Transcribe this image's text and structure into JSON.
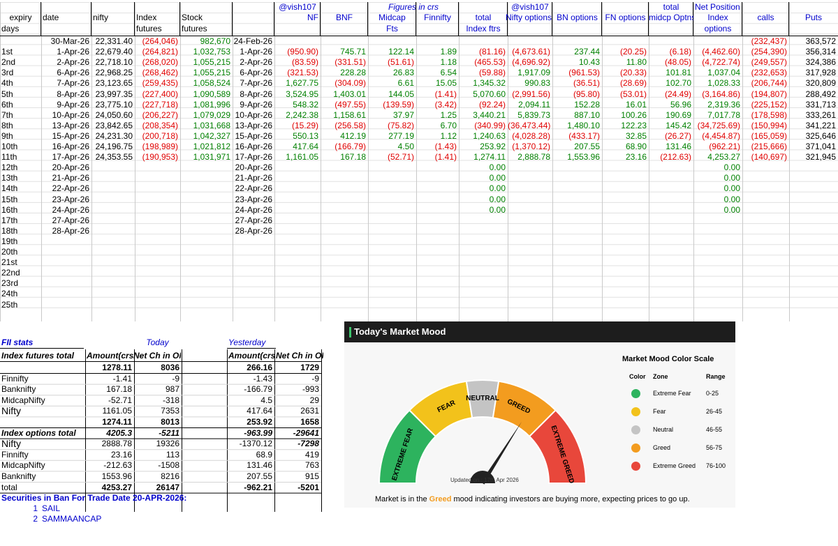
{
  "header_row1": {
    "vish1": "@vish107",
    "figures": "Figures in crs",
    "vish2": "@vish107",
    "total": "total",
    "net_position": "Net Position"
  },
  "header_row2": {
    "expiry": "expiry",
    "date": "date",
    "nifty": "nifty",
    "index": "Index",
    "stock": "Stock",
    "nf": "NF",
    "bnf": "BNF",
    "midcap": "Midcap",
    "finnifty": "Finnifty",
    "total": "total",
    "nifty_options": "Nifty options",
    "bn_options": "BN options",
    "fn_options": "FN options",
    "midcp_optns": "midcp Optns",
    "index2": "Index",
    "calls": "calls",
    "puts": "Puts"
  },
  "header_row3": {
    "days": "days",
    "futures1": "futures",
    "futures2": "futures",
    "fts": "Fts",
    "index_ftrs": "Index ftrs",
    "options": "options"
  },
  "first_row": {
    "date": "30-Mar-26",
    "nifty": "22,331.40",
    "index_fut": "(264,046)",
    "stock_fut": "982,670",
    "date2": "24-Feb-26",
    "calls": "(232,437)",
    "puts": "363,572"
  },
  "rows": [
    {
      "day": "1st",
      "date": "1-Apr-26",
      "nifty": "22,679.40",
      "idx": "(264,821)",
      "stk": "1,032,753",
      "d2": "1-Apr-26",
      "nf": "(950.90)",
      "bnf": "745.71",
      "mid": "122.14",
      "fin": "1.89",
      "tot": "(81.16)",
      "nopt": "(4,673.61)",
      "bnopt": "237.44",
      "fnopt": "(20.25)",
      "mcopt": "(6.18)",
      "iopt": "(4,462.60)",
      "calls": "(254,390)",
      "puts": "356,314"
    },
    {
      "day": "2nd",
      "date": "2-Apr-26",
      "nifty": "22,718.10",
      "idx": "(268,020)",
      "stk": "1,055,215",
      "d2": "2-Apr-26",
      "nf": "(83.59)",
      "bnf": "(331.51)",
      "mid": "(51.61)",
      "fin": "1.18",
      "tot": "(465.53)",
      "nopt": "(4,696.92)",
      "bnopt": "10.43",
      "fnopt": "11.80",
      "mcopt": "(48.05)",
      "iopt": "(4,722.74)",
      "calls": "(249,557)",
      "puts": "324,386"
    },
    {
      "day": "3rd",
      "date": "6-Apr-26",
      "nifty": "22,968.25",
      "idx": "(268,462)",
      "stk": "1,055,215",
      "d2": "6-Apr-26",
      "nf": "(321.53)",
      "bnf": "228.28",
      "mid": "26.83",
      "fin": "6.54",
      "tot": "(59.88)",
      "nopt": "1,917.09",
      "bnopt": "(961.53)",
      "fnopt": "(20.33)",
      "mcopt": "101.81",
      "iopt": "1,037.04",
      "calls": "(232,653)",
      "puts": "317,928"
    },
    {
      "day": "4th",
      "date": "7-Apr-26",
      "nifty": "23,123.65",
      "idx": "(259,435)",
      "stk": "1,058,524",
      "d2": "7-Apr-26",
      "nf": "1,627.75",
      "bnf": "(304.09)",
      "mid": "6.61",
      "fin": "15.05",
      "tot": "1,345.32",
      "nopt": "990.83",
      "bnopt": "(36.51)",
      "fnopt": "(28.69)",
      "mcopt": "102.70",
      "iopt": "1,028.33",
      "calls": "(206,744)",
      "puts": "320,809"
    },
    {
      "day": "5th",
      "date": "8-Apr-26",
      "nifty": "23,997.35",
      "idx": "(227,400)",
      "stk": "1,090,589",
      "d2": "8-Apr-26",
      "nf": "3,524.95",
      "bnf": "1,403.01",
      "mid": "144.05",
      "fin": "(1.41)",
      "tot": "5,070.60",
      "nopt": "(2,991.56)",
      "bnopt": "(95.80)",
      "fnopt": "(53.01)",
      "mcopt": "(24.49)",
      "iopt": "(3,164.86)",
      "calls": "(194,807)",
      "puts": "288,492"
    },
    {
      "day": "6th",
      "date": "9-Apr-26",
      "nifty": "23,775.10",
      "idx": "(227,718)",
      "stk": "1,081,996",
      "d2": "9-Apr-26",
      "nf": "548.32",
      "bnf": "(497.55)",
      "mid": "(139.59)",
      "fin": "(3.42)",
      "tot": "(92.24)",
      "nopt": "2,094.11",
      "bnopt": "152.28",
      "fnopt": "16.01",
      "mcopt": "56.96",
      "iopt": "2,319.36",
      "calls": "(225,152)",
      "puts": "331,713"
    },
    {
      "day": "7th",
      "date": "10-Apr-26",
      "nifty": "24,050.60",
      "idx": "(206,227)",
      "stk": "1,079,029",
      "d2": "10-Apr-26",
      "nf": "2,242.38",
      "bnf": "1,158.61",
      "mid": "37.97",
      "fin": "1.25",
      "tot": "3,440.21",
      "nopt": "5,839.73",
      "bnopt": "887.10",
      "fnopt": "100.26",
      "mcopt": "190.69",
      "iopt": "7,017.78",
      "calls": "(178,598)",
      "puts": "333,261"
    },
    {
      "day": "8th",
      "date": "13-Apr-26",
      "nifty": "23,842.65",
      "idx": "(208,354)",
      "stk": "1,031,668",
      "d2": "13-Apr-26",
      "nf": "(15.29)",
      "bnf": "(256.58)",
      "mid": "(75.82)",
      "fin": "6.70",
      "tot": "(340.99)",
      "nopt": "(36,473.44)",
      "bnopt": "1,480.10",
      "fnopt": "122.23",
      "mcopt": "145.42",
      "iopt": "(34,725.69)",
      "calls": "(150,994)",
      "puts": "341,221"
    },
    {
      "day": "9th",
      "date": "15-Apr-26",
      "nifty": "24,231.30",
      "idx": "(200,718)",
      "stk": "1,042,327",
      "d2": "15-Apr-26",
      "nf": "550.13",
      "bnf": "412.19",
      "mid": "277.19",
      "fin": "1.12",
      "tot": "1,240.63",
      "nopt": "(4,028.28)",
      "bnopt": "(433.17)",
      "fnopt": "32.85",
      "mcopt": "(26.27)",
      "iopt": "(4,454.87)",
      "calls": "(165,059)",
      "puts": "325,646"
    },
    {
      "day": "10th",
      "date": "16-Apr-26",
      "nifty": "24,196.75",
      "idx": "(198,989)",
      "stk": "1,021,812",
      "d2": "16-Apr-26",
      "nf": "417.64",
      "bnf": "(166.79)",
      "mid": "4.50",
      "fin": "(1.43)",
      "tot": "253.92",
      "nopt": "(1,370.12)",
      "bnopt": "207.55",
      "fnopt": "68.90",
      "mcopt": "131.46",
      "iopt": "(962.21)",
      "calls": "(215,666)",
      "puts": "371,041"
    },
    {
      "day": "11th",
      "date": "17-Apr-26",
      "nifty": "24,353.55",
      "idx": "(190,953)",
      "stk": "1,031,971",
      "d2": "17-Apr-26",
      "nf": "1,161.05",
      "bnf": "167.18",
      "mid": "(52.71)",
      "fin": "(1.41)",
      "tot": "1,274.11",
      "nopt": "2,888.78",
      "bnopt": "1,553.96",
      "fnopt": "23.16",
      "mcopt": "(212.63)",
      "iopt": "4,253.27",
      "calls": "(140,697)",
      "puts": "321,945"
    },
    {
      "day": "12th",
      "date": "20-Apr-26",
      "d2": "20-Apr-26",
      "tot": "0.00",
      "iopt": "0.00"
    },
    {
      "day": "13th",
      "date": "21-Apr-26",
      "d2": "21-Apr-26",
      "tot": "0.00",
      "iopt": "0.00"
    },
    {
      "day": "14th",
      "date": "22-Apr-26",
      "d2": "22-Apr-26",
      "tot": "0.00",
      "iopt": "0.00"
    },
    {
      "day": "15th",
      "date": "23-Apr-26",
      "d2": "23-Apr-26",
      "tot": "0.00",
      "iopt": "0.00"
    },
    {
      "day": "16th",
      "date": "24-Apr-26",
      "d2": "24-Apr-26",
      "tot": "0.00",
      "iopt": "0.00"
    },
    {
      "day": "17th",
      "date": "27-Apr-26",
      "d2": "27-Apr-26"
    },
    {
      "day": "18th",
      "date": "28-Apr-26",
      "d2": "28-Apr-26"
    },
    {
      "day": "19th"
    },
    {
      "day": "20th"
    },
    {
      "day": "21st"
    },
    {
      "day": "22nd"
    },
    {
      "day": "23rd"
    },
    {
      "day": "24th"
    },
    {
      "day": "25th"
    }
  ],
  "fii": {
    "title": "FII stats",
    "today": "Today",
    "yesterday": "Yesterday",
    "col_label": "Index futures total",
    "amount_hdr": "Amount(crs",
    "netch_hdr": "Net Ch in OI",
    "amount_hdr2": "Amount(crs",
    "netch_hdr2": "Net Ch in OI",
    "rows": [
      {
        "label": "",
        "a": "1278.11",
        "n": "8036",
        "ya": "266.16",
        "yn": "1729",
        "bold": true
      },
      {
        "label": "Finnifty",
        "a": "-1.41",
        "n": "-9",
        "ya": "-1.43",
        "yn": "-9"
      },
      {
        "label": "Banknifty",
        "a": "167.18",
        "n": "987",
        "ya": "-166.79",
        "yn": "-993"
      },
      {
        "label": "MidcapNifty",
        "a": "-52.71",
        "n": "-318",
        "ya": "4.5",
        "yn": "29"
      },
      {
        "label": "Nifty",
        "a": "1161.05",
        "n": "7353",
        "ya": "417.64",
        "yn": "2631"
      },
      {
        "label": "",
        "a": "1274.11",
        "n": "8013",
        "ya": "253.92",
        "yn": "1658",
        "bold": true
      },
      {
        "label": "Index options total",
        "a": "4205.3",
        "n": "-5211",
        "ya": "-963.99",
        "yn": "-29641",
        "italic": true
      },
      {
        "label": "Nifty",
        "a": "2888.78",
        "n": "19326",
        "ya": "-1370.12",
        "yn": "-7298"
      },
      {
        "label": "Finnifty",
        "a": "23.16",
        "n": "113",
        "ya": "68.9",
        "yn": "419"
      },
      {
        "label": "MidcapNifty",
        "a": "-212.63",
        "n": "-1508",
        "ya": "131.46",
        "yn": "763"
      },
      {
        "label": "Banknifty",
        "a": "1553.96",
        "n": "8216",
        "ya": "207.55",
        "yn": "915"
      },
      {
        "label": "total",
        "a": "4253.27",
        "n": "26147",
        "ya": "-962.21",
        "yn": "-5201",
        "bold": true
      }
    ]
  },
  "ban": {
    "title": "Securities in Ban For Trade Date 20-APR-2026:",
    "items": [
      {
        "n": "1",
        "name": "SAIL"
      },
      {
        "n": "2",
        "name": "SAMMAANCAP"
      }
    ]
  },
  "mood": {
    "title": "Today's Market Mood",
    "labels": {
      "extreme_fear": "EXTREME FEAR",
      "fear": "FEAR",
      "neutral": "NEUTRAL",
      "greed": "GREED",
      "extreme_greed": "EXTREME GREED"
    },
    "updated": "Updated on : 17th Apr 2026",
    "gauge_value": 68,
    "scale_title": "Market Mood Color Scale",
    "scale_headers": {
      "color": "Color",
      "zone": "Zone",
      "range": "Range"
    },
    "scale": [
      {
        "zone": "Extreme Fear",
        "range": "0-25",
        "color": "#2db35e"
      },
      {
        "zone": "Fear",
        "range": "26-45",
        "color": "#f2c21b"
      },
      {
        "zone": "Neutral",
        "range": "46-55",
        "color": "#c4c4c4"
      },
      {
        "zone": "Greed",
        "range": "56-75",
        "color": "#f39c1f"
      },
      {
        "zone": "Extreme Greed",
        "range": "76-100",
        "color": "#e8473b"
      }
    ],
    "footer_pre": "Market is in the ",
    "footer_word": "Greed",
    "footer_post": " mood indicating investors are buying more, expecting prices to go up.",
    "colors": {
      "extreme_fear": "#2db35e",
      "fear": "#f2c21b",
      "neutral": "#c4c4c4",
      "greed": "#f39c1f",
      "extreme_greed": "#e8473b",
      "greed_text": "#f39c1f"
    }
  }
}
